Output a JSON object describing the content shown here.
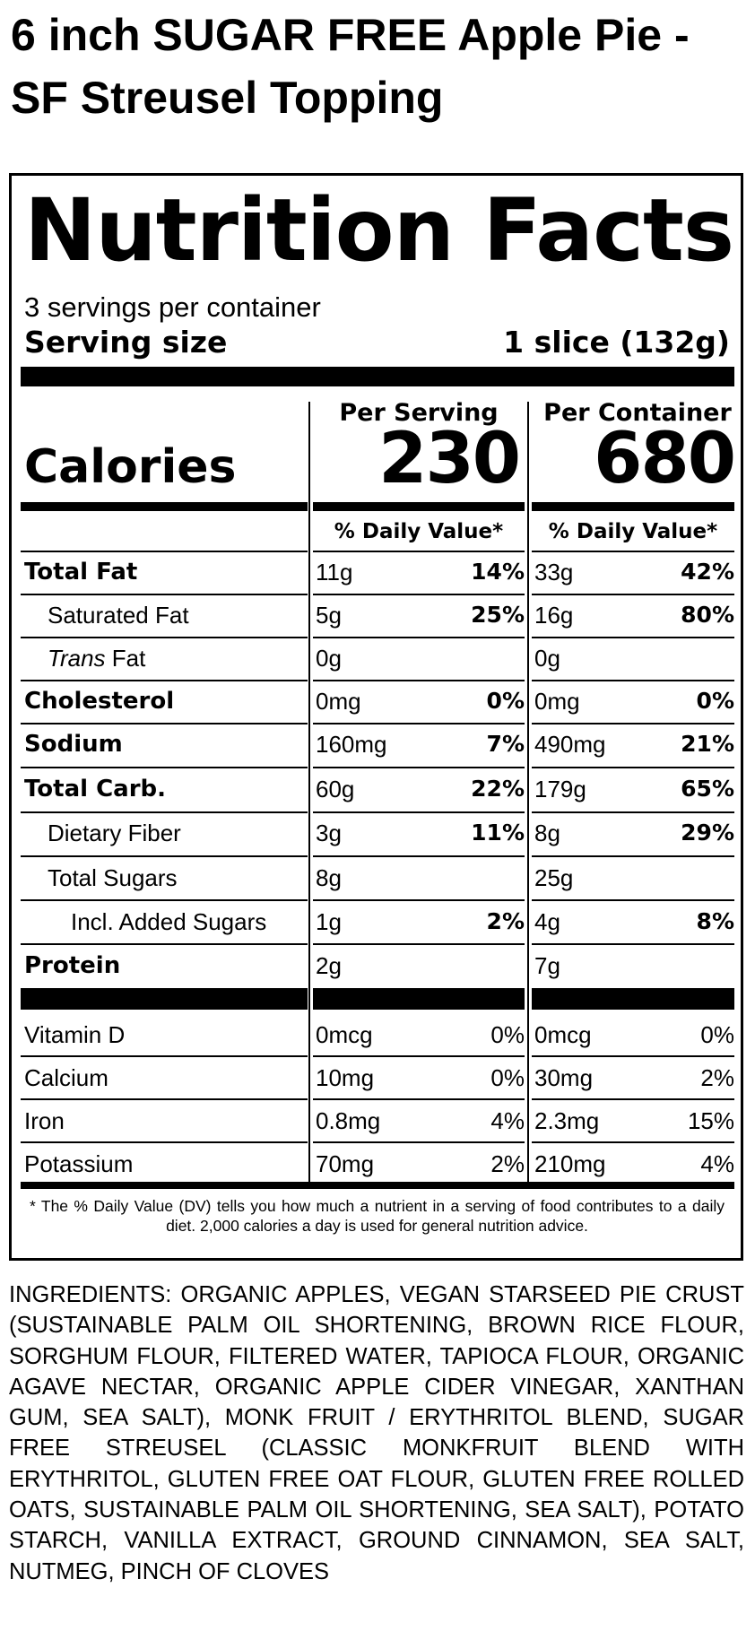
{
  "product_title": "6 inch SUGAR FREE Apple Pie - SF Streusel Topping",
  "panel": {
    "heading": "Nutrition Facts",
    "servings_per_container": "3 servings per container",
    "serving_size_label": "Serving size",
    "serving_size_value": "1 slice (132g)",
    "per_serving_label": "Per Serving",
    "per_container_label": "Per Container",
    "calories_label": "Calories",
    "calories_per_serving": "230",
    "calories_per_container": "680",
    "daily_value_label": "% Daily Value*",
    "rows": [
      {
        "label": "Total Fat",
        "style": "bold",
        "indent": 0,
        "serving_amount": "11g",
        "serving_dv": "14%",
        "container_amount": "33g",
        "container_dv": "42%"
      },
      {
        "label": "Saturated Fat",
        "style": "normal",
        "indent": 1,
        "serving_amount": "5g",
        "serving_dv": "25%",
        "container_amount": "16g",
        "container_dv": "80%"
      },
      {
        "label_italic": "Trans",
        "label": " Fat",
        "style": "normal",
        "indent": 1,
        "serving_amount": "0g",
        "serving_dv": "",
        "container_amount": "0g",
        "container_dv": ""
      },
      {
        "label": "Cholesterol",
        "style": "bold",
        "indent": 0,
        "serving_amount": "0mg",
        "serving_dv": "0%",
        "container_amount": "0mg",
        "container_dv": "0%"
      },
      {
        "label": "Sodium",
        "style": "bold",
        "indent": 0,
        "serving_amount": "160mg",
        "serving_dv": "7%",
        "container_amount": "490mg",
        "container_dv": "21%"
      },
      {
        "label": "Total Carb.",
        "style": "bold",
        "indent": 0,
        "serving_amount": "60g",
        "serving_dv": "22%",
        "container_amount": "179g",
        "container_dv": "65%"
      },
      {
        "label": "Dietary Fiber",
        "style": "normal",
        "indent": 1,
        "serving_amount": "3g",
        "serving_dv": "11%",
        "container_amount": "8g",
        "container_dv": "29%"
      },
      {
        "label": "Total Sugars",
        "style": "normal",
        "indent": 1,
        "serving_amount": "8g",
        "serving_dv": "",
        "container_amount": "25g",
        "container_dv": ""
      },
      {
        "label": "Incl. Added Sugars",
        "style": "normal",
        "indent": 2,
        "serving_amount": "1g",
        "serving_dv": "2%",
        "container_amount": "4g",
        "container_dv": "8%"
      },
      {
        "label": "Protein",
        "style": "bold",
        "indent": 0,
        "serving_amount": "2g",
        "serving_dv": "",
        "container_amount": "7g",
        "container_dv": ""
      }
    ],
    "vitamin_rows": [
      {
        "label": "Vitamin D",
        "serving_amount": "0mcg",
        "serving_dv": "0%",
        "container_amount": "0mcg",
        "container_dv": "0%"
      },
      {
        "label": "Calcium",
        "serving_amount": "10mg",
        "serving_dv": "0%",
        "container_amount": "30mg",
        "container_dv": "2%"
      },
      {
        "label": "Iron",
        "serving_amount": "0.8mg",
        "serving_dv": "4%",
        "container_amount": "2.3mg",
        "container_dv": "15%"
      },
      {
        "label": "Potassium",
        "serving_amount": "70mg",
        "serving_dv": "2%",
        "container_amount": "210mg",
        "container_dv": "4%"
      }
    ],
    "footnote": "* The % Daily Value (DV) tells you how much a nutrient in a serving of food contributes to a daily diet. 2,000 calories a day is used for general nutrition advice."
  },
  "ingredients": "INGREDIENTS: ORGANIC APPLES, VEGAN STARSEED PIE CRUST (SUSTAINABLE PALM OIL SHORTENING, BROWN RICE FLOUR, SORGHUM FLOUR, FILTERED WATER, TAPIOCA FLOUR, ORGANIC AGAVE NECTAR, ORGANIC APPLE CIDER VINEGAR, XANTHAN GUM, SEA SALT), MONK FRUIT / ERYTHRITOL BLEND, SUGAR FREE STREUSEL (CLASSIC MONKFRUIT BLEND WITH ERYTHRITOL, GLUTEN FREE OAT FLOUR, GLUTEN FREE ROLLED OATS, SUSTAINABLE PALM OIL SHORTENING, SEA SALT), POTATO STARCH, VANILLA EXTRACT, GROUND CINNAMON, SEA SALT, NUTMEG, PINCH OF CLOVES"
}
